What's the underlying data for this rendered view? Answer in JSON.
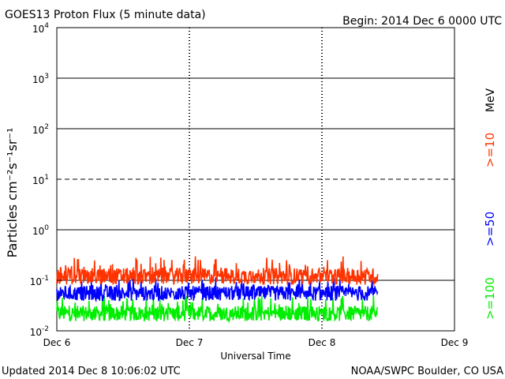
{
  "header": {
    "title": "GOES13 Proton Flux (5 minute data)",
    "begin": "Begin: 2014 Dec 6 0000 UTC"
  },
  "footer": {
    "updated": "Updated 2014 Dec  8 10:06:02 UTC",
    "credit": "NOAA/SWPC Boulder, CO USA"
  },
  "chart_data": {
    "type": "line",
    "title": "GOES13 Proton Flux (5 minute data)",
    "xlabel": "Universal Time",
    "ylabel": "Particles cm⁻²s⁻¹sr⁻¹",
    "yscale": "log",
    "ylim": [
      0.01,
      10000
    ],
    "xlim": [
      "2014-12-06 00:00",
      "2014-12-09 00:00"
    ],
    "data_end": "2014-12-08 10:05",
    "x_ticks": [
      "Dec 6",
      "Dec 7",
      "Dec 8",
      "Dec 9"
    ],
    "y_ticks": [
      {
        "base": "10",
        "exp": "-2"
      },
      {
        "base": "10",
        "exp": "-1"
      },
      {
        "base": "10",
        "exp": "0"
      },
      {
        "base": "10",
        "exp": "1"
      },
      {
        "base": "10",
        "exp": "2"
      },
      {
        "base": "10",
        "exp": "3"
      },
      {
        "base": "10",
        "exp": "4"
      }
    ],
    "grid": true,
    "unit_label": "MeV",
    "series": [
      {
        "name": ">=10",
        "color": "#ff3300",
        "typical": 0.12,
        "low": 0.075,
        "high": 0.3
      },
      {
        "name": ">=50",
        "color": "#0000ff",
        "typical": 0.055,
        "low": 0.035,
        "high": 0.12
      },
      {
        "name": ">=100",
        "color": "#00ee00",
        "typical": 0.022,
        "low": 0.014,
        "high": 0.05
      }
    ]
  }
}
